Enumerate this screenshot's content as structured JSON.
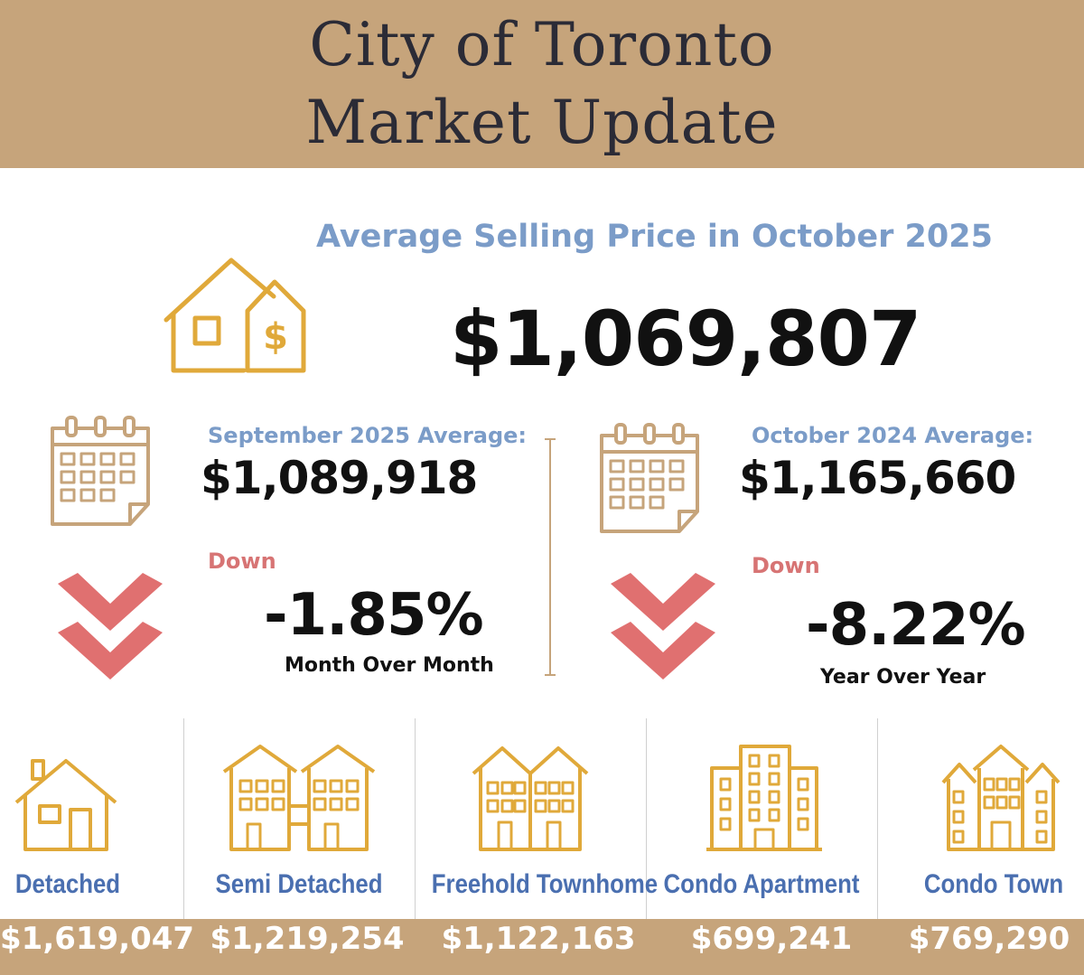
{
  "header": {
    "title_line1": "City of Toronto",
    "title_line2": "Market Update",
    "background_color": "#c6a47b"
  },
  "summary": {
    "subtitle": "Average Selling Price in October 2025",
    "average_price": "$1,069,807",
    "icon": "house-dollar-icon"
  },
  "month_comparison": {
    "label": "September  2025 Average:",
    "value": "$1,089,918",
    "direction": "Down",
    "change": "-1.85%",
    "caption": "Month Over Month",
    "icon": "calendar-icon"
  },
  "year_comparison": {
    "label": "October 2024 Average:",
    "value": "$1,165,660",
    "direction": "Down",
    "change": "-8.22%",
    "caption": "Year Over Year",
    "icon": "calendar-icon"
  },
  "property_types": [
    {
      "label": "Detached",
      "price": "$1,619,047",
      "icon": "detached-house-icon"
    },
    {
      "label": "Semi Detached",
      "price": "$1,219,254",
      "icon": "semi-detached-icon"
    },
    {
      "label": "Freehold Townhome",
      "price": "$1,122,163",
      "icon": "townhome-icon"
    },
    {
      "label": "Condo Apartment",
      "price": "$699,241",
      "icon": "condo-apartment-icon"
    },
    {
      "label": "Condo Town",
      "price": "$769,290",
      "icon": "condo-town-icon"
    }
  ],
  "colors": {
    "accent_tan": "#c6a47b",
    "icon_gold": "#e0a93a",
    "label_blue": "#7b9cc8",
    "type_blue": "#4a6fb0",
    "down_red": "#e07070"
  }
}
